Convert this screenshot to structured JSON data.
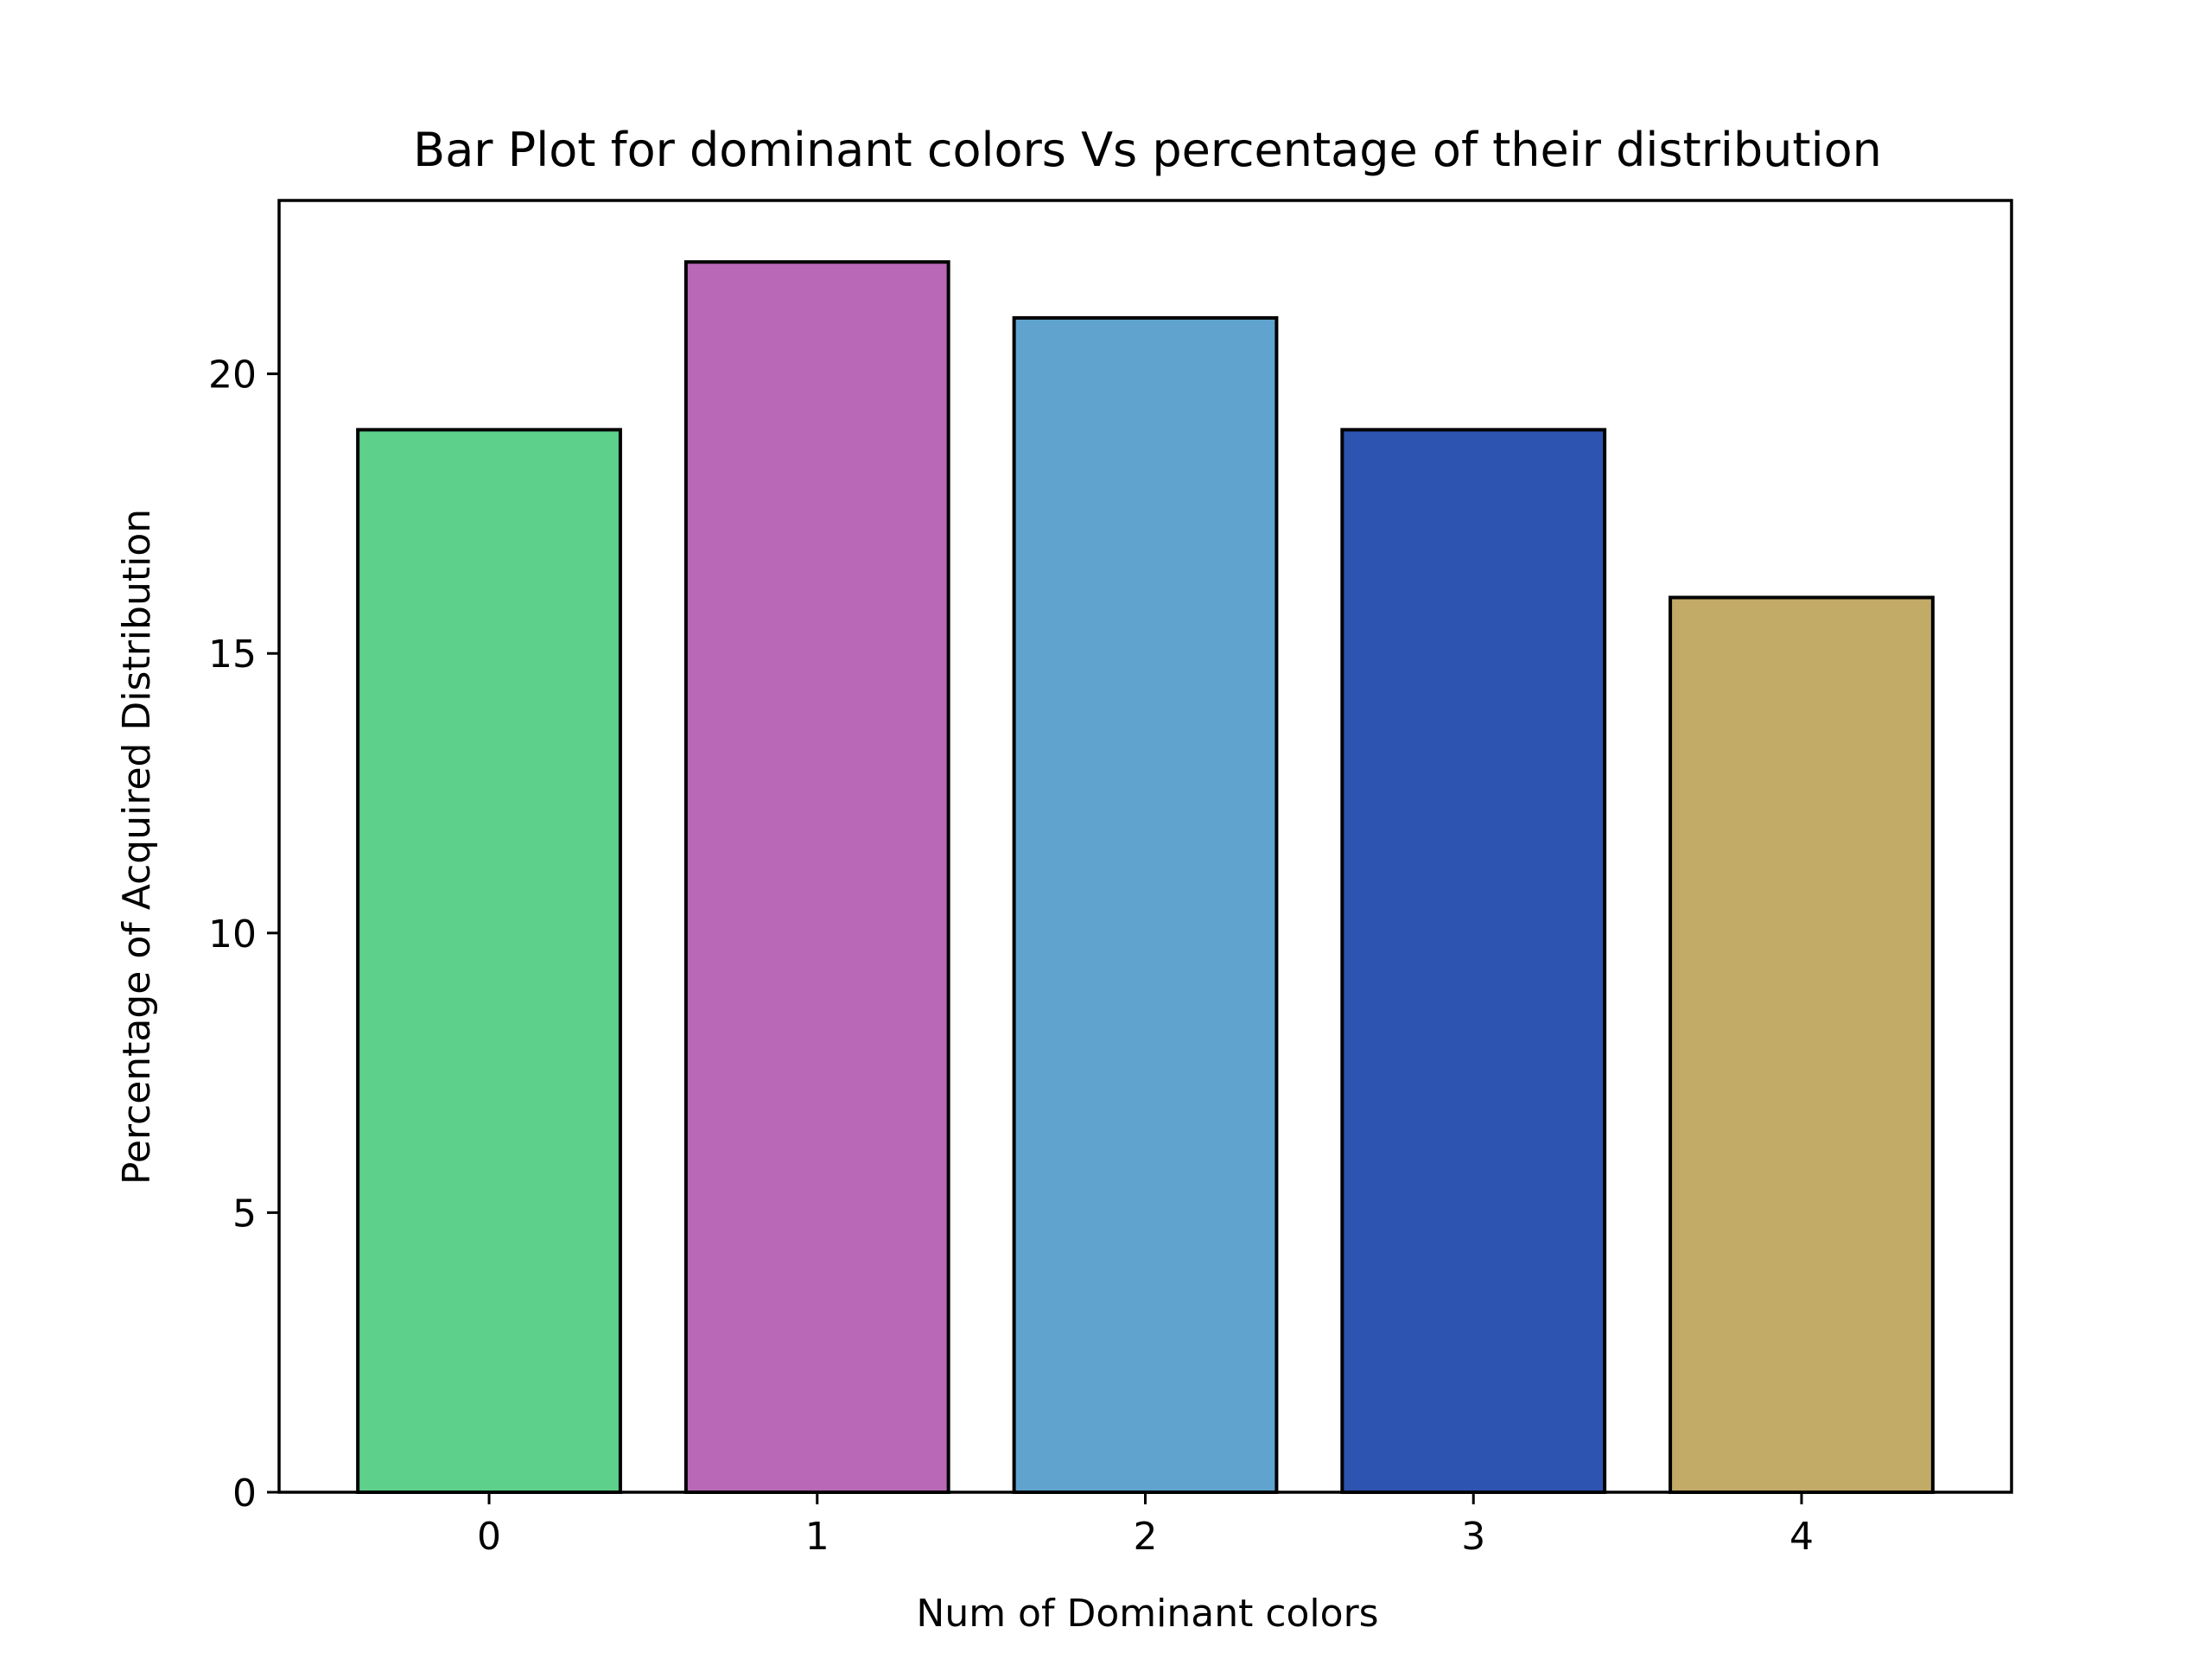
{
  "chart_data": {
    "type": "bar",
    "title": "Bar Plot for dominant colors Vs percentage of their distribution",
    "xlabel": "Num of Dominant colors",
    "ylabel": "Percentage of Acquired Distribution",
    "categories": [
      "0",
      "1",
      "2",
      "3",
      "4"
    ],
    "values": [
      19,
      22,
      21,
      19,
      16
    ],
    "colors": [
      "#5dd08c",
      "#b868b6",
      "#5fa3ce",
      "#2c54b0",
      "#c2aa67"
    ],
    "edge_color": "#000000",
    "ylim": [
      0,
      23.1
    ],
    "xlim": [
      -0.64,
      4.64
    ],
    "yticks": [
      0,
      5,
      10,
      15,
      20
    ],
    "yticks_labels": [
      "0",
      "5",
      "10",
      "15",
      "20"
    ],
    "grid": false,
    "legend": "none"
  }
}
